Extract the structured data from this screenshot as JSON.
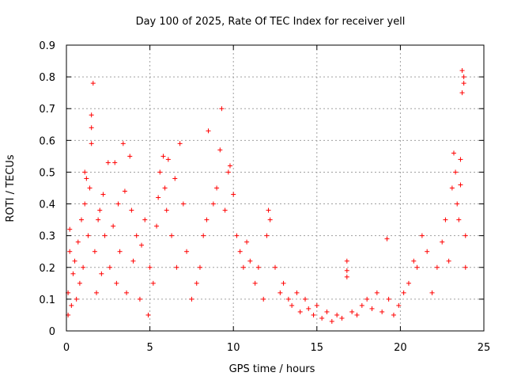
{
  "chart_data": {
    "type": "scatter",
    "title": "Day 100 of 2025, Rate Of TEC Index for receiver yell",
    "xlabel": "GPS time / hours",
    "ylabel": "ROTI / TECUs",
    "xlim": [
      0,
      25
    ],
    "ylim": [
      0,
      0.9
    ],
    "xticks": [
      "0",
      "5",
      "10",
      "15",
      "20",
      "25"
    ],
    "yticks": [
      "0",
      "0.1",
      "0.2",
      "0.3",
      "0.4",
      "0.5",
      "0.6",
      "0.7",
      "0.8",
      "0.9"
    ],
    "grid": true,
    "marker": "+",
    "color": "#ff0000",
    "series": [
      {
        "name": "ROTI",
        "points": [
          [
            0.1,
            0.05
          ],
          [
            0.1,
            0.12
          ],
          [
            0.2,
            0.25
          ],
          [
            0.2,
            0.32
          ],
          [
            0.3,
            0.08
          ],
          [
            0.4,
            0.18
          ],
          [
            0.5,
            0.22
          ],
          [
            0.6,
            0.1
          ],
          [
            0.7,
            0.28
          ],
          [
            0.8,
            0.15
          ],
          [
            0.9,
            0.35
          ],
          [
            1.0,
            0.2
          ],
          [
            1.1,
            0.4
          ],
          [
            1.1,
            0.5
          ],
          [
            1.2,
            0.48
          ],
          [
            1.3,
            0.3
          ],
          [
            1.4,
            0.45
          ],
          [
            1.5,
            0.68
          ],
          [
            1.5,
            0.64
          ],
          [
            1.5,
            0.59
          ],
          [
            1.6,
            0.78
          ],
          [
            1.7,
            0.25
          ],
          [
            1.8,
            0.12
          ],
          [
            1.9,
            0.35
          ],
          [
            2.0,
            0.38
          ],
          [
            2.1,
            0.18
          ],
          [
            2.2,
            0.43
          ],
          [
            2.3,
            0.3
          ],
          [
            2.5,
            0.53
          ],
          [
            2.6,
            0.2
          ],
          [
            2.8,
            0.33
          ],
          [
            2.9,
            0.53
          ],
          [
            3.0,
            0.15
          ],
          [
            3.1,
            0.4
          ],
          [
            3.2,
            0.25
          ],
          [
            3.4,
            0.59
          ],
          [
            3.5,
            0.44
          ],
          [
            3.6,
            0.12
          ],
          [
            3.8,
            0.55
          ],
          [
            3.9,
            0.38
          ],
          [
            4.0,
            0.22
          ],
          [
            4.2,
            0.3
          ],
          [
            4.4,
            0.1
          ],
          [
            4.5,
            0.27
          ],
          [
            4.7,
            0.35
          ],
          [
            4.9,
            0.05
          ],
          [
            5.0,
            0.2
          ],
          [
            5.2,
            0.15
          ],
          [
            5.4,
            0.33
          ],
          [
            5.5,
            0.42
          ],
          [
            5.6,
            0.5
          ],
          [
            5.8,
            0.55
          ],
          [
            5.9,
            0.45
          ],
          [
            6.0,
            0.38
          ],
          [
            6.1,
            0.54
          ],
          [
            6.3,
            0.3
          ],
          [
            6.5,
            0.48
          ],
          [
            6.6,
            0.2
          ],
          [
            6.8,
            0.59
          ],
          [
            7.0,
            0.4
          ],
          [
            7.2,
            0.25
          ],
          [
            7.5,
            0.1
          ],
          [
            7.8,
            0.15
          ],
          [
            8.0,
            0.2
          ],
          [
            8.2,
            0.3
          ],
          [
            8.4,
            0.35
          ],
          [
            8.5,
            0.63
          ],
          [
            8.8,
            0.4
          ],
          [
            9.0,
            0.45
          ],
          [
            9.2,
            0.57
          ],
          [
            9.3,
            0.7
          ],
          [
            9.5,
            0.38
          ],
          [
            9.7,
            0.5
          ],
          [
            9.8,
            0.52
          ],
          [
            10.0,
            0.43
          ],
          [
            10.2,
            0.3
          ],
          [
            10.4,
            0.25
          ],
          [
            10.6,
            0.2
          ],
          [
            10.8,
            0.28
          ],
          [
            11.0,
            0.22
          ],
          [
            11.3,
            0.15
          ],
          [
            11.5,
            0.2
          ],
          [
            11.8,
            0.1
          ],
          [
            12.0,
            0.3
          ],
          [
            12.1,
            0.38
          ],
          [
            12.2,
            0.35
          ],
          [
            12.5,
            0.2
          ],
          [
            12.8,
            0.12
          ],
          [
            13.0,
            0.15
          ],
          [
            13.3,
            0.1
          ],
          [
            13.5,
            0.08
          ],
          [
            13.8,
            0.12
          ],
          [
            14.0,
            0.06
          ],
          [
            14.3,
            0.1
          ],
          [
            14.5,
            0.07
          ],
          [
            14.8,
            0.05
          ],
          [
            15.0,
            0.08
          ],
          [
            15.3,
            0.04
          ],
          [
            15.6,
            0.06
          ],
          [
            15.9,
            0.03
          ],
          [
            16.2,
            0.05
          ],
          [
            16.5,
            0.04
          ],
          [
            16.8,
            0.22
          ],
          [
            16.8,
            0.19
          ],
          [
            16.8,
            0.17
          ],
          [
            17.1,
            0.06
          ],
          [
            17.4,
            0.05
          ],
          [
            17.7,
            0.08
          ],
          [
            18.0,
            0.1
          ],
          [
            18.3,
            0.07
          ],
          [
            18.6,
            0.12
          ],
          [
            18.9,
            0.06
          ],
          [
            19.2,
            0.29
          ],
          [
            19.3,
            0.1
          ],
          [
            19.6,
            0.05
          ],
          [
            19.9,
            0.08
          ],
          [
            20.2,
            0.12
          ],
          [
            20.5,
            0.15
          ],
          [
            20.8,
            0.22
          ],
          [
            21.0,
            0.2
          ],
          [
            21.3,
            0.3
          ],
          [
            21.6,
            0.25
          ],
          [
            21.9,
            0.12
          ],
          [
            22.2,
            0.2
          ],
          [
            22.5,
            0.28
          ],
          [
            22.7,
            0.35
          ],
          [
            22.9,
            0.22
          ],
          [
            23.1,
            0.45
          ],
          [
            23.2,
            0.56
          ],
          [
            23.3,
            0.5
          ],
          [
            23.4,
            0.4
          ],
          [
            23.5,
            0.35
          ],
          [
            23.6,
            0.54
          ],
          [
            23.6,
            0.46
          ],
          [
            23.7,
            0.82
          ],
          [
            23.7,
            0.75
          ],
          [
            23.8,
            0.8
          ],
          [
            23.8,
            0.78
          ],
          [
            23.9,
            0.3
          ],
          [
            23.9,
            0.2
          ]
        ]
      }
    ]
  }
}
